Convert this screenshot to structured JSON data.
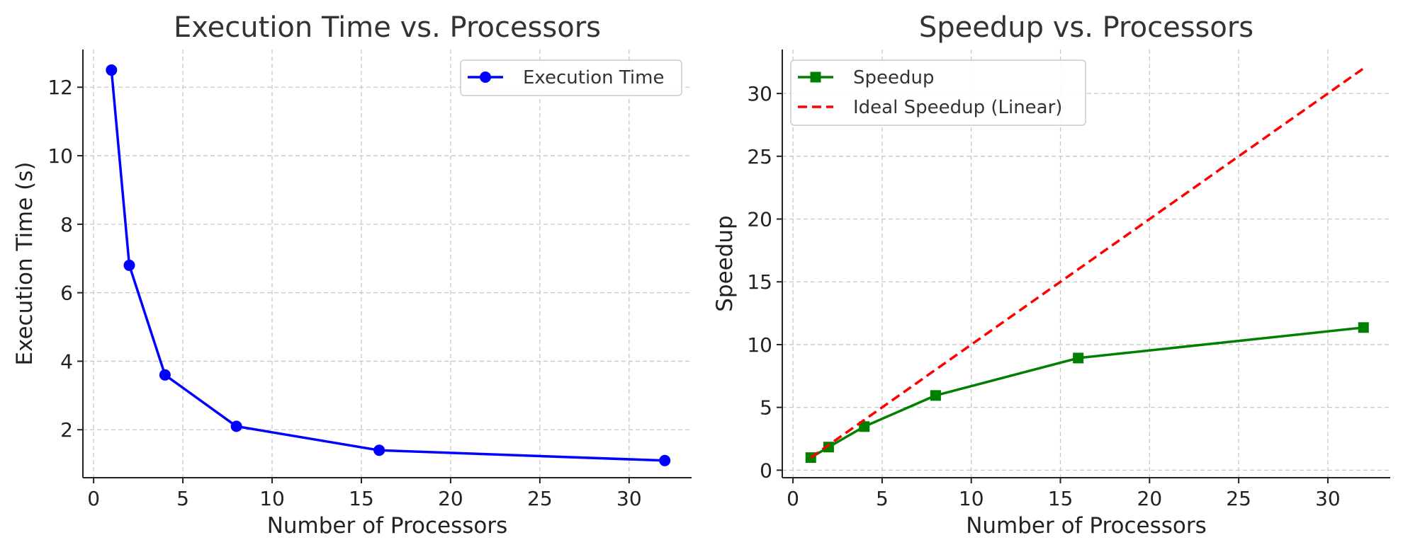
{
  "chart_data": [
    {
      "type": "line",
      "title": "Execution Time vs. Processors",
      "xlabel": "Number of Processors",
      "ylabel": "Execution Time (s)",
      "xlim": [
        -0.6,
        33.5
      ],
      "ylim": [
        0.6,
        13.1
      ],
      "xticks": [
        0,
        5,
        10,
        15,
        20,
        25,
        30
      ],
      "yticks": [
        2,
        4,
        6,
        8,
        10,
        12
      ],
      "grid": true,
      "legend_position": "top-right",
      "x": [
        1,
        2,
        4,
        8,
        16,
        32
      ],
      "series": [
        {
          "name": "Execution Time",
          "values": [
            12.5,
            6.8,
            3.6,
            2.1,
            1.4,
            1.1
          ],
          "color": "#0000ff",
          "marker": "circle",
          "linestyle": "solid"
        }
      ]
    },
    {
      "type": "line",
      "title": "Speedup vs. Processors",
      "xlabel": "Number of Processors",
      "ylabel": "Speedup",
      "xlim": [
        -0.6,
        33.5
      ],
      "ylim": [
        -0.6,
        33.5
      ],
      "xticks": [
        0,
        5,
        10,
        15,
        20,
        25,
        30
      ],
      "yticks": [
        0,
        5,
        10,
        15,
        20,
        25,
        30
      ],
      "grid": true,
      "legend_position": "top-left",
      "x": [
        1,
        2,
        4,
        8,
        16,
        32
      ],
      "series": [
        {
          "name": "Speedup",
          "values": [
            1.0,
            1.84,
            3.47,
            5.95,
            8.93,
            11.36
          ],
          "color": "#008000",
          "marker": "square",
          "linestyle": "solid"
        },
        {
          "name": "Ideal Speedup (Linear)",
          "values": [
            1,
            2,
            4,
            8,
            16,
            32
          ],
          "color": "#ff0000",
          "marker": "none",
          "linestyle": "dashed"
        }
      ]
    }
  ]
}
